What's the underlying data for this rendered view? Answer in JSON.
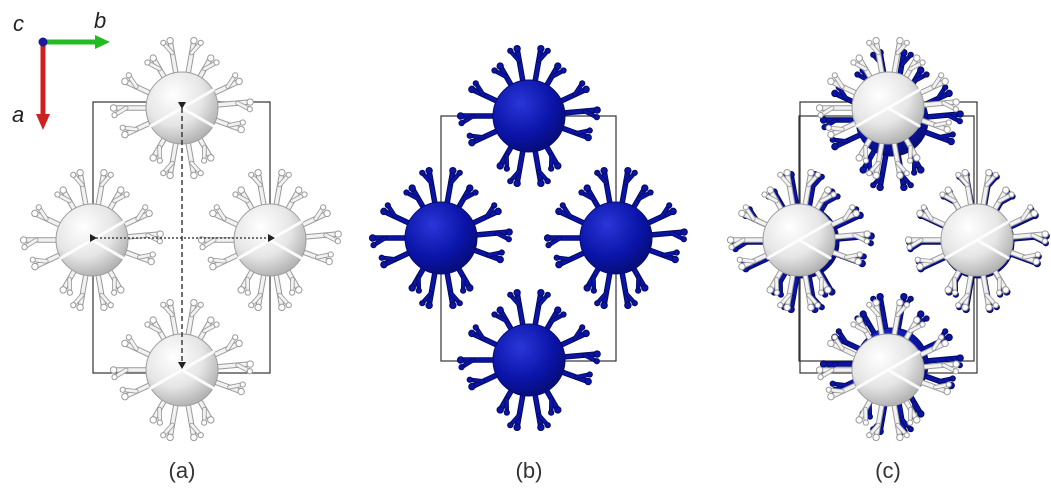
{
  "axes": {
    "c_label": "c",
    "b_label": "b",
    "a_label": "a",
    "b_arrow_color": "#22bb22",
    "a_arrow_color": "#cc2222",
    "origin_color": "#1a1a99"
  },
  "panels": [
    {
      "caption": "(a)",
      "molecule_color": "#ebebeb",
      "variant": "gray"
    },
    {
      "caption": "(b)",
      "molecule_color": "#0a14a8",
      "variant": "blue"
    },
    {
      "caption": "(c)",
      "molecule_color": "#ebebeb",
      "variant": "overlay"
    }
  ],
  "colors": {
    "gray_sphere": "#e8e8e8",
    "gray_stick": "#f2f2f2",
    "gray_outline": "#9a9a9a",
    "blue_sphere": "#0a14a8",
    "blue_stick": "#0a14a8",
    "cell_line": "#333333"
  }
}
